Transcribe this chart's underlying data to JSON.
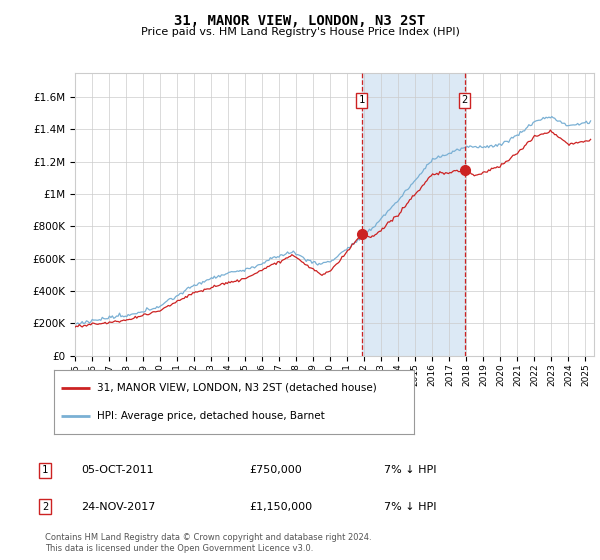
{
  "title": "31, MANOR VIEW, LONDON, N3 2ST",
  "subtitle": "Price paid vs. HM Land Registry's House Price Index (HPI)",
  "ylabel_ticks": [
    "£0",
    "£200K",
    "£400K",
    "£600K",
    "£800K",
    "£1M",
    "£1.2M",
    "£1.4M",
    "£1.6M"
  ],
  "ytick_values": [
    0,
    200000,
    400000,
    600000,
    800000,
    1000000,
    1200000,
    1400000,
    1600000
  ],
  "ylim": [
    0,
    1750000
  ],
  "xlim_start": 1995.0,
  "xlim_end": 2025.5,
  "hpi_color": "#7ab0d4",
  "price_color": "#cc2222",
  "sale1_date": 2011.85,
  "sale1_price": 750000,
  "sale2_date": 2017.9,
  "sale2_price": 1150000,
  "legend_label1": "31, MANOR VIEW, LONDON, N3 2ST (detached house)",
  "legend_label2": "HPI: Average price, detached house, Barnet",
  "annotation1_date": "05-OCT-2011",
  "annotation1_price": "£750,000",
  "annotation1_hpi": "7% ↓ HPI",
  "annotation2_date": "24-NOV-2017",
  "annotation2_price": "£1,150,000",
  "annotation2_hpi": "7% ↓ HPI",
  "footer": "Contains HM Land Registry data © Crown copyright and database right 2024.\nThis data is licensed under the Open Government Licence v3.0.",
  "plot_bg_color": "#ffffff",
  "grid_color": "#cccccc",
  "span_color": "#dce9f5"
}
